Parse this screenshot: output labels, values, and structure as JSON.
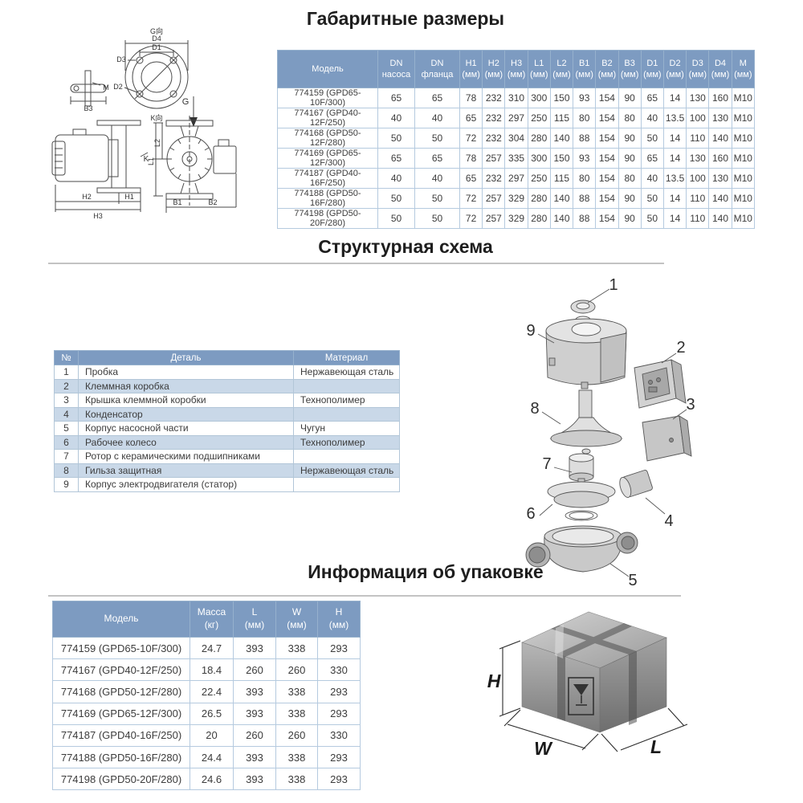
{
  "sections": {
    "dimensions": {
      "title": "Габаритные размеры"
    },
    "structure": {
      "title": "Структурная схема"
    },
    "packaging": {
      "title": "Информация об упаковке"
    }
  },
  "dimensions_table": {
    "columns": [
      [
        "Модель"
      ],
      [
        "DN",
        "насоса"
      ],
      [
        "DN",
        "фланца"
      ],
      [
        "H1",
        "(мм)"
      ],
      [
        "H2",
        "(мм)"
      ],
      [
        "H3",
        "(мм)"
      ],
      [
        "L1",
        "(мм)"
      ],
      [
        "L2",
        "(мм)"
      ],
      [
        "B1",
        "(мм)"
      ],
      [
        "B2",
        "(мм)"
      ],
      [
        "B3",
        "(мм)"
      ],
      [
        "D1",
        "(мм)"
      ],
      [
        "D2",
        "(мм)"
      ],
      [
        "D3",
        "(мм)"
      ],
      [
        "D4",
        "(мм)"
      ],
      [
        "M",
        "(мм)"
      ]
    ],
    "rows": [
      [
        "774159 (GPD65-10F/300)",
        "65",
        "65",
        "78",
        "232",
        "310",
        "300",
        "150",
        "93",
        "154",
        "90",
        "65",
        "14",
        "130",
        "160",
        "M10"
      ],
      [
        "774167 (GPD40-12F/250)",
        "40",
        "40",
        "65",
        "232",
        "297",
        "250",
        "115",
        "80",
        "154",
        "80",
        "40",
        "13.5",
        "100",
        "130",
        "M10"
      ],
      [
        "774168 (GPD50-12F/280)",
        "50",
        "50",
        "72",
        "232",
        "304",
        "280",
        "140",
        "88",
        "154",
        "90",
        "50",
        "14",
        "110",
        "140",
        "M10"
      ],
      [
        "774169 (GPD65-12F/300)",
        "65",
        "65",
        "78",
        "257",
        "335",
        "300",
        "150",
        "93",
        "154",
        "90",
        "65",
        "14",
        "130",
        "160",
        "M10"
      ],
      [
        "774187 (GPD40-16F/250)",
        "40",
        "40",
        "65",
        "232",
        "297",
        "250",
        "115",
        "80",
        "154",
        "80",
        "40",
        "13.5",
        "100",
        "130",
        "M10"
      ],
      [
        "774188 (GPD50-16F/280)",
        "50",
        "50",
        "72",
        "257",
        "329",
        "280",
        "140",
        "88",
        "154",
        "90",
        "50",
        "14",
        "110",
        "140",
        "M10"
      ],
      [
        "774198 (GPD50-20F/280)",
        "50",
        "50",
        "72",
        "257",
        "329",
        "280",
        "140",
        "88",
        "154",
        "90",
        "50",
        "14",
        "110",
        "140",
        "M10"
      ]
    ]
  },
  "parts_table": {
    "columns": [
      [
        "№"
      ],
      [
        "Деталь"
      ],
      [
        "Материал"
      ]
    ],
    "rows": [
      [
        "1",
        "Пробка",
        "Нержавеющая сталь"
      ],
      [
        "2",
        "Клеммная коробка",
        ""
      ],
      [
        "3",
        "Крышка клеммной коробки",
        "Технополимер"
      ],
      [
        "4",
        "Конденсатор",
        ""
      ],
      [
        "5",
        "Корпус насосной части",
        "Чугун"
      ],
      [
        "6",
        "Рабочее колесо",
        "Технополимер"
      ],
      [
        "7",
        "Ротор с керамическими подшипниками",
        ""
      ],
      [
        "8",
        "Гильза защитная",
        "Нержавеющая сталь"
      ],
      [
        "9",
        "Корпус электродвигателя (статор)",
        ""
      ]
    ]
  },
  "packaging_table": {
    "columns": [
      [
        "Модель"
      ],
      [
        "Масса",
        "(кг)"
      ],
      [
        "L",
        "(мм)"
      ],
      [
        "W",
        "(мм)"
      ],
      [
        "H",
        "(мм)"
      ]
    ],
    "rows": [
      [
        "774159 (GPD65-10F/300)",
        "24.7",
        "393",
        "338",
        "293"
      ],
      [
        "774167 (GPD40-12F/250)",
        "18.4",
        "260",
        "260",
        "330"
      ],
      [
        "774168 (GPD50-12F/280)",
        "22.4",
        "393",
        "338",
        "293"
      ],
      [
        "774169 (GPD65-12F/300)",
        "26.5",
        "393",
        "338",
        "293"
      ],
      [
        "774187 (GPD40-16F/250)",
        "20",
        "260",
        "260",
        "330"
      ],
      [
        "774188 (GPD50-16F/280)",
        "24.4",
        "393",
        "338",
        "293"
      ],
      [
        "774198 (GPD50-20F/280)",
        "24.6",
        "393",
        "338",
        "293"
      ]
    ]
  },
  "dimension_drawing": {
    "labels": {
      "g_view": "G向",
      "k_view": "K向",
      "d1": "D1",
      "d2": "D2",
      "d3": "D3",
      "d4": "D4",
      "m": "M",
      "b3": "B3",
      "g": "G",
      "k": "K",
      "h1": "H1",
      "h2": "H2",
      "h3": "H3",
      "l1": "L1",
      "l2": "L2",
      "b1": "B1",
      "b2": "B2"
    }
  },
  "exploded_view": {
    "callouts": [
      "1",
      "2",
      "3",
      "4",
      "5",
      "6",
      "7",
      "8",
      "9"
    ]
  },
  "package_box": {
    "labels": {
      "h": "H",
      "w": "W",
      "l": "L"
    }
  },
  "colors": {
    "table_header_bg": "#7d9bc1",
    "table_header_text": "#ffffff",
    "row_alt_bg": "#c9d8e8",
    "grid_line": "#b5cadf",
    "body_text": "#3c3c3c",
    "title_text": "#1e1e1e",
    "divider": "#c3c3c3"
  }
}
